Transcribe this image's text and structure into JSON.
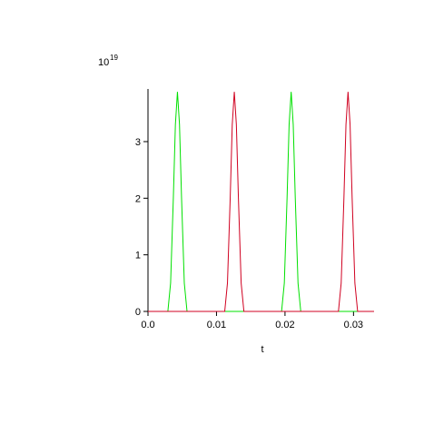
{
  "chart_data": {
    "type": "line",
    "y_scale_base": "10",
    "y_scale_exponent": "19",
    "x_label": "t",
    "xlim": [
      0,
      0.033
    ],
    "ylim": [
      0,
      3.93
    ],
    "xticks": [
      {
        "value": 0,
        "label": "0.0"
      },
      0.01,
      0.02,
      0.03
    ],
    "yticks": [
      0,
      1,
      2,
      3
    ],
    "series": [
      {
        "color": "#00e000",
        "x": [
          0,
          0.0029,
          0.0033,
          0.0037,
          0.004,
          0.0043,
          0.0046,
          0.0049,
          0.0053,
          0.0057,
          0.0195,
          0.0199,
          0.0203,
          0.0206,
          0.0209,
          0.0212,
          0.0215,
          0.0219,
          0.0223,
          0.033
        ],
        "values": [
          0,
          0,
          0.5,
          2.0,
          3.3,
          3.88,
          3.3,
          2.0,
          0.5,
          0,
          0,
          0.5,
          2.0,
          3.3,
          3.88,
          3.3,
          2.0,
          0.5,
          0,
          0
        ]
      },
      {
        "color": "#d00020",
        "x": [
          0,
          0.0112,
          0.0116,
          0.012,
          0.0123,
          0.0126,
          0.0129,
          0.0132,
          0.0136,
          0.014,
          0.0278,
          0.0282,
          0.0286,
          0.0289,
          0.0292,
          0.0295,
          0.0298,
          0.0302,
          0.0306,
          0.033
        ],
        "values": [
          0,
          0,
          0.5,
          2.0,
          3.3,
          3.88,
          3.3,
          2.0,
          0.5,
          0,
          0,
          0.5,
          2.0,
          3.3,
          3.88,
          3.3,
          2.0,
          0.5,
          0,
          0
        ]
      }
    ]
  }
}
